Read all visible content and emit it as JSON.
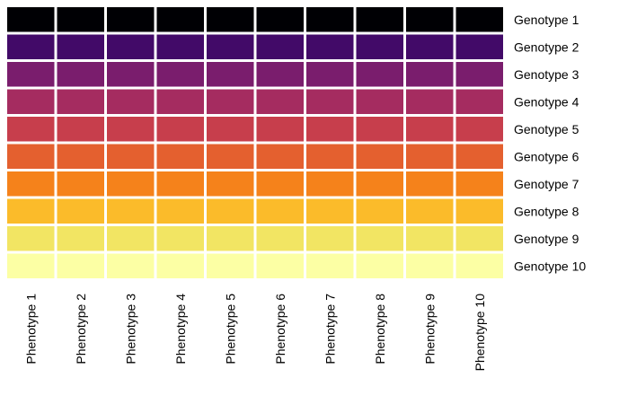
{
  "chart_data": {
    "type": "heatmap",
    "title": "",
    "xlabel": "",
    "ylabel": "",
    "rows": [
      "Genotype 1",
      "Genotype 2",
      "Genotype 3",
      "Genotype 4",
      "Genotype 5",
      "Genotype 6",
      "Genotype 7",
      "Genotype 8",
      "Genotype 9",
      "Genotype 10"
    ],
    "columns": [
      "Phenotype 1",
      "Phenotype 2",
      "Phenotype 3",
      "Phenotype 4",
      "Phenotype 5",
      "Phenotype 6",
      "Phenotype 7",
      "Phenotype 8",
      "Phenotype 9",
      "Phenotype 10"
    ],
    "row_colors": [
      "#000004",
      "#420a68",
      "#7a1d6d",
      "#a52c60",
      "#c73e4c",
      "#e4602f",
      "#f5821b",
      "#fbbb2a",
      "#f2e563",
      "#fcffa4"
    ],
    "grid": false,
    "legend": "none",
    "row_labels_position": "right",
    "column_labels_position": "bottom",
    "column_labels_rotation": "vertical"
  }
}
